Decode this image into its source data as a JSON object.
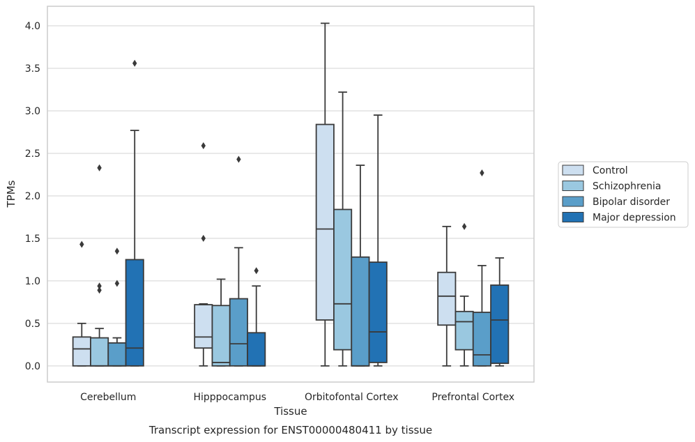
{
  "chart_data": {
    "type": "box",
    "title": "",
    "caption": "Transcript expression for ENST00000480411 by tissue",
    "xlabel": "Tissue",
    "ylabel": "TPMs",
    "ylim": [
      -0.19,
      4.23
    ],
    "yticks": [
      "0.0",
      "0.5",
      "1.0",
      "1.5",
      "2.0",
      "2.5",
      "3.0",
      "3.5",
      "4.0"
    ],
    "grid": true,
    "legend_position": "right, outside plot",
    "categories": [
      "Cerebellum",
      "Hipppocampus",
      "Orbitofontal Cortex",
      "Prefrontal Cortex"
    ],
    "series": [
      {
        "name": "Control",
        "color": "#cddff0",
        "boxes": [
          {
            "min": 0.0,
            "q1": 0.0,
            "median": 0.2,
            "q3": 0.34,
            "max": 0.5,
            "outliers": [
              1.43
            ]
          },
          {
            "min": 0.0,
            "q1": 0.21,
            "median": 0.34,
            "q3": 0.72,
            "max": 0.73,
            "outliers": [
              1.5,
              2.59
            ]
          },
          {
            "min": 0.0,
            "q1": 0.54,
            "median": 1.61,
            "q3": 2.84,
            "max": 4.03,
            "outliers": []
          },
          {
            "min": 0.0,
            "q1": 0.48,
            "median": 0.82,
            "q3": 1.1,
            "max": 1.64,
            "outliers": []
          }
        ]
      },
      {
        "name": "Schizophrenia",
        "color": "#9ac8e0",
        "boxes": [
          {
            "min": 0.0,
            "q1": 0.0,
            "median": 0.0,
            "q3": 0.33,
            "max": 0.44,
            "outliers": [
              0.89,
              0.94,
              2.33
            ]
          },
          {
            "min": 0.0,
            "q1": 0.0,
            "median": 0.04,
            "q3": 0.71,
            "max": 1.02,
            "outliers": []
          },
          {
            "min": 0.0,
            "q1": 0.19,
            "median": 0.73,
            "q3": 1.84,
            "max": 3.22,
            "outliers": []
          },
          {
            "min": 0.0,
            "q1": 0.19,
            "median": 0.52,
            "q3": 0.64,
            "max": 0.82,
            "outliers": [
              1.64
            ]
          }
        ]
      },
      {
        "name": "Bipolar disorder",
        "color": "#5a9ec9",
        "boxes": [
          {
            "min": 0.0,
            "q1": 0.0,
            "median": 0.0,
            "q3": 0.27,
            "max": 0.33,
            "outliers": [
              0.97,
              1.35
            ]
          },
          {
            "min": 0.0,
            "q1": 0.0,
            "median": 0.26,
            "q3": 0.79,
            "max": 1.39,
            "outliers": [
              2.43
            ]
          },
          {
            "min": 0.0,
            "q1": 0.0,
            "median": 0.0,
            "q3": 1.28,
            "max": 2.36,
            "outliers": []
          },
          {
            "min": 0.0,
            "q1": 0.0,
            "median": 0.13,
            "q3": 0.63,
            "max": 1.18,
            "outliers": [
              2.27
            ]
          }
        ]
      },
      {
        "name": "Major depression",
        "color": "#2272b4",
        "boxes": [
          {
            "min": 0.0,
            "q1": 0.0,
            "median": 0.21,
            "q3": 1.25,
            "max": 2.77,
            "outliers": [
              3.56
            ]
          },
          {
            "min": 0.0,
            "q1": 0.0,
            "median": 0.0,
            "q3": 0.39,
            "max": 0.94,
            "outliers": [
              1.12
            ]
          },
          {
            "min": 0.0,
            "q1": 0.04,
            "median": 0.4,
            "q3": 1.22,
            "max": 2.95,
            "outliers": []
          },
          {
            "min": 0.0,
            "q1": 0.03,
            "median": 0.54,
            "q3": 0.95,
            "max": 1.27,
            "outliers": []
          }
        ]
      }
    ]
  }
}
